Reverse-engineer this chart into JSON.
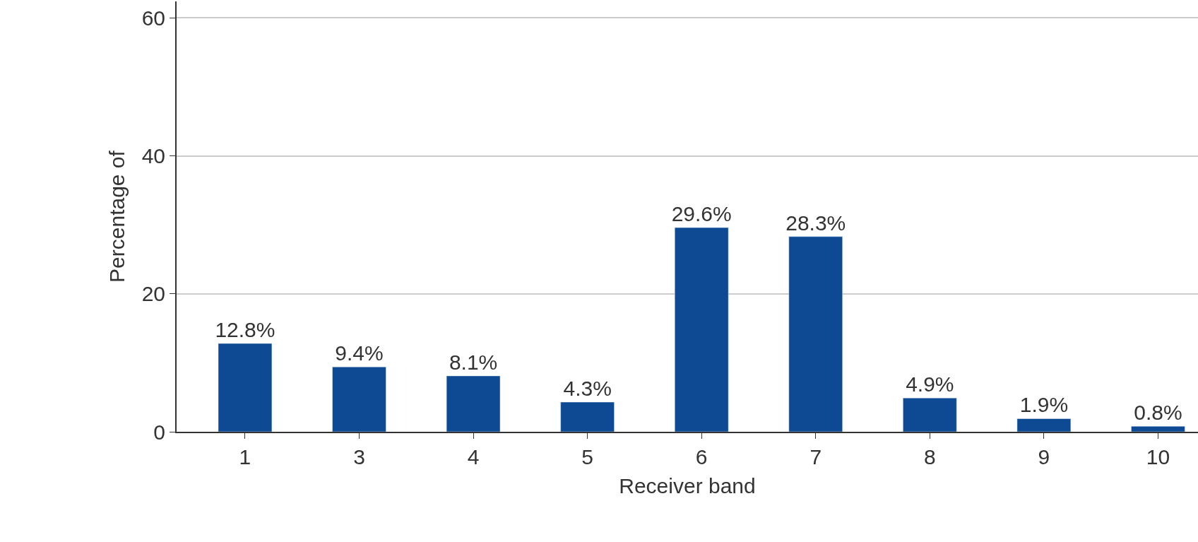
{
  "chart_data": {
    "type": "bar",
    "xlabel": "Receiver band",
    "ylabel": "Percentage of",
    "categories": [
      "1",
      "3",
      "4",
      "5",
      "6",
      "7",
      "8",
      "9",
      "10"
    ],
    "values": [
      12.8,
      9.4,
      8.1,
      4.3,
      29.6,
      28.3,
      4.9,
      1.9,
      0.8
    ],
    "value_labels": [
      "12.8%",
      "9.4%",
      "8.1%",
      "4.3%",
      "29.6%",
      "28.3%",
      "4.9%",
      "1.9%",
      "0.8%"
    ],
    "color": "#0e4a94",
    "ylim": [
      0,
      62.4
    ],
    "yticks": [
      0,
      20,
      40,
      60
    ],
    "grid": "y"
  }
}
